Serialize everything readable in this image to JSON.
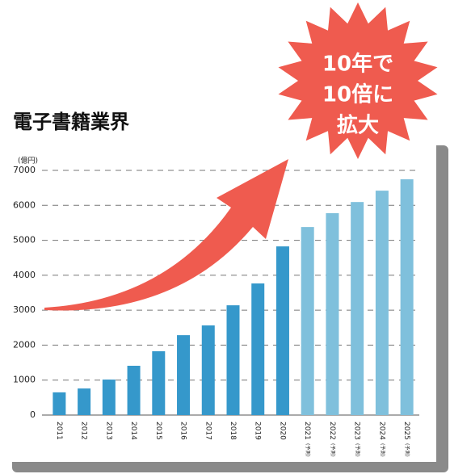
{
  "chart_data": {
    "type": "bar",
    "title": "電子書籍業界",
    "y_label": "(億円)",
    "categories": [
      "2011",
      "2012",
      "2013",
      "2014",
      "2015",
      "2016",
      "2017",
      "2018",
      "2019",
      "2020",
      "2021",
      "2022",
      "2023",
      "2024",
      "2025"
    ],
    "category_notes": [
      null,
      null,
      null,
      null,
      null,
      null,
      null,
      null,
      null,
      null,
      "(予測)",
      "(予測)",
      "(予測)",
      "(予測)",
      "(予測)"
    ],
    "values": [
      650,
      760,
      1015,
      1410,
      1825,
      2285,
      2565,
      3140,
      3765,
      4825,
      5380,
      5775,
      6095,
      6420,
      6745
    ],
    "colors": [
      "#3598cb",
      "#3598cb",
      "#3598cb",
      "#3598cb",
      "#3598cb",
      "#3598cb",
      "#3598cb",
      "#3598cb",
      "#3598cb",
      "#3598cb",
      "#7fc0dc",
      "#7fc0dc",
      "#7fc0dc",
      "#7fc0dc",
      "#7fc0dc"
    ],
    "ylim": [
      0,
      7000
    ],
    "yticks": [
      0,
      1000,
      2000,
      3000,
      4000,
      5000,
      6000,
      7000
    ],
    "grid": true,
    "annotation": [
      "10年で",
      "10倍に",
      "拡大"
    ]
  }
}
